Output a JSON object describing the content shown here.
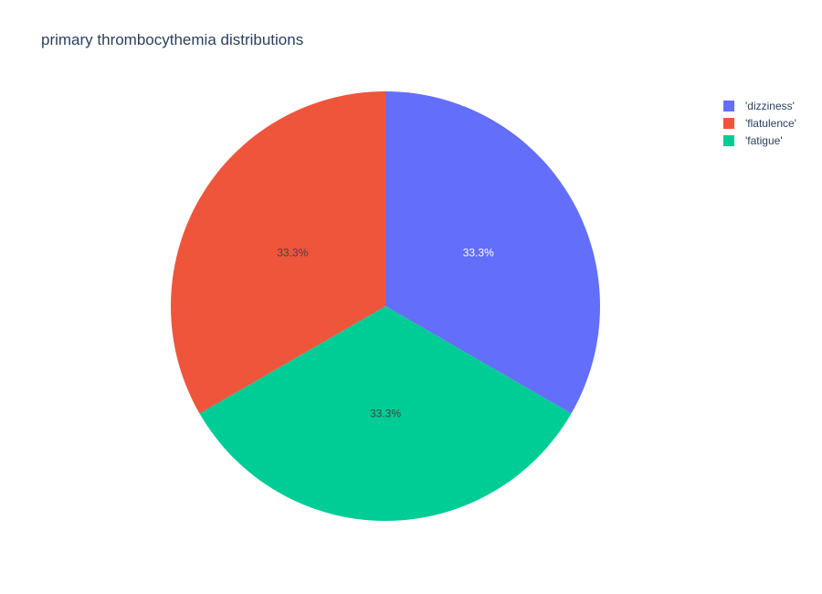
{
  "chart_data": {
    "type": "pie",
    "title": "primary thrombocythemia distributions",
    "labels": [
      "'dizziness'",
      "'flatulence'",
      "'fatigue'"
    ],
    "values": [
      1,
      1,
      1
    ],
    "percent_labels": [
      "33.3%",
      "33.3%",
      "33.3%"
    ],
    "colors": [
      "#636efa",
      "#ef553b",
      "#00cc96"
    ],
    "label_colors": [
      "#ffffff",
      "#444444",
      "#444444"
    ],
    "slice_order": [
      0,
      2,
      1
    ],
    "legend_placement": "top-right"
  }
}
